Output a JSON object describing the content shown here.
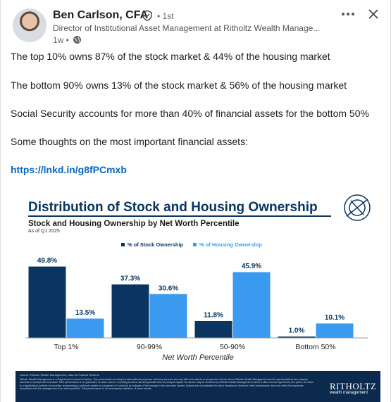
{
  "post": {
    "author": "Ben Carlson, CFA",
    "degree": "• 1st",
    "headline": "Director of Institutional Asset Management at Ritholtz Wealth Manage...",
    "time": "1w •",
    "paragraphs": [
      "The top 10% owns 87% of the stock market & 44% of the housing market",
      "The bottom 90% owns 13% of the stock market & 56% of the housing market",
      "Social Security accounts for more than 40% of financial assets for the bottom 50%",
      "Some thoughts on the most important financial assets:"
    ],
    "link": "https://lnkd.in/g8fPCmxb"
  },
  "chart_data": {
    "type": "bar",
    "title": "Distribution of Stock and Housing Ownership",
    "subtitle": "Stock and Housing Ownership by Net Worth Percentile",
    "date_note": "As of Q1 2025",
    "x_label": "Net Worth Percentile",
    "categories": [
      "Top 1%",
      "90-99%",
      "50-90%",
      "Bottom 50%"
    ],
    "series": [
      {
        "name": "% of Stock Ownership",
        "color": "#0b3561",
        "values": [
          49.8,
          37.3,
          11.8,
          1.0
        ],
        "value_labels": [
          "49.8%",
          "37.3%",
          "11.8%",
          "1.0%"
        ]
      },
      {
        "name": "% of Housing Ownership",
        "color": "#3a9af0",
        "values": [
          13.5,
          30.6,
          45.9,
          10.1
        ],
        "value_labels": [
          "13.5%",
          "30.6%",
          "45.9%",
          "10.1%"
        ]
      }
    ],
    "ylim": [
      0,
      55
    ],
    "legend": "top",
    "source": "Source: Ritholtz Wealth Management, data via Federal Reserve",
    "disclaimer": "Ritholtz Wealth Management is a Registered Investment Adviser. This presentation is solely for informational purposes. Advisory services are only offered to clients or prospective clients where Ritholtz Wealth Management and its representatives are properly licensed or exempt from licensure. Past performance is no guarantee of future returns. Investing involves risk and possible loss of principal capital. No advice may be rendered by Ritholtz Wealth Management unless a client service agreement is in place. An index is a hypothetical portfolio of securities representing a particular market or a segment of it used as an indicator of the change in the securities market. Indices are not available for direct investment; therefore, their performance does not reflect the expenses associated with the management of an actual portfolio. Past performance is not necessarily indicative of future results.",
    "brand": "RITHOLTZ",
    "brand_sub": "wealth management"
  }
}
